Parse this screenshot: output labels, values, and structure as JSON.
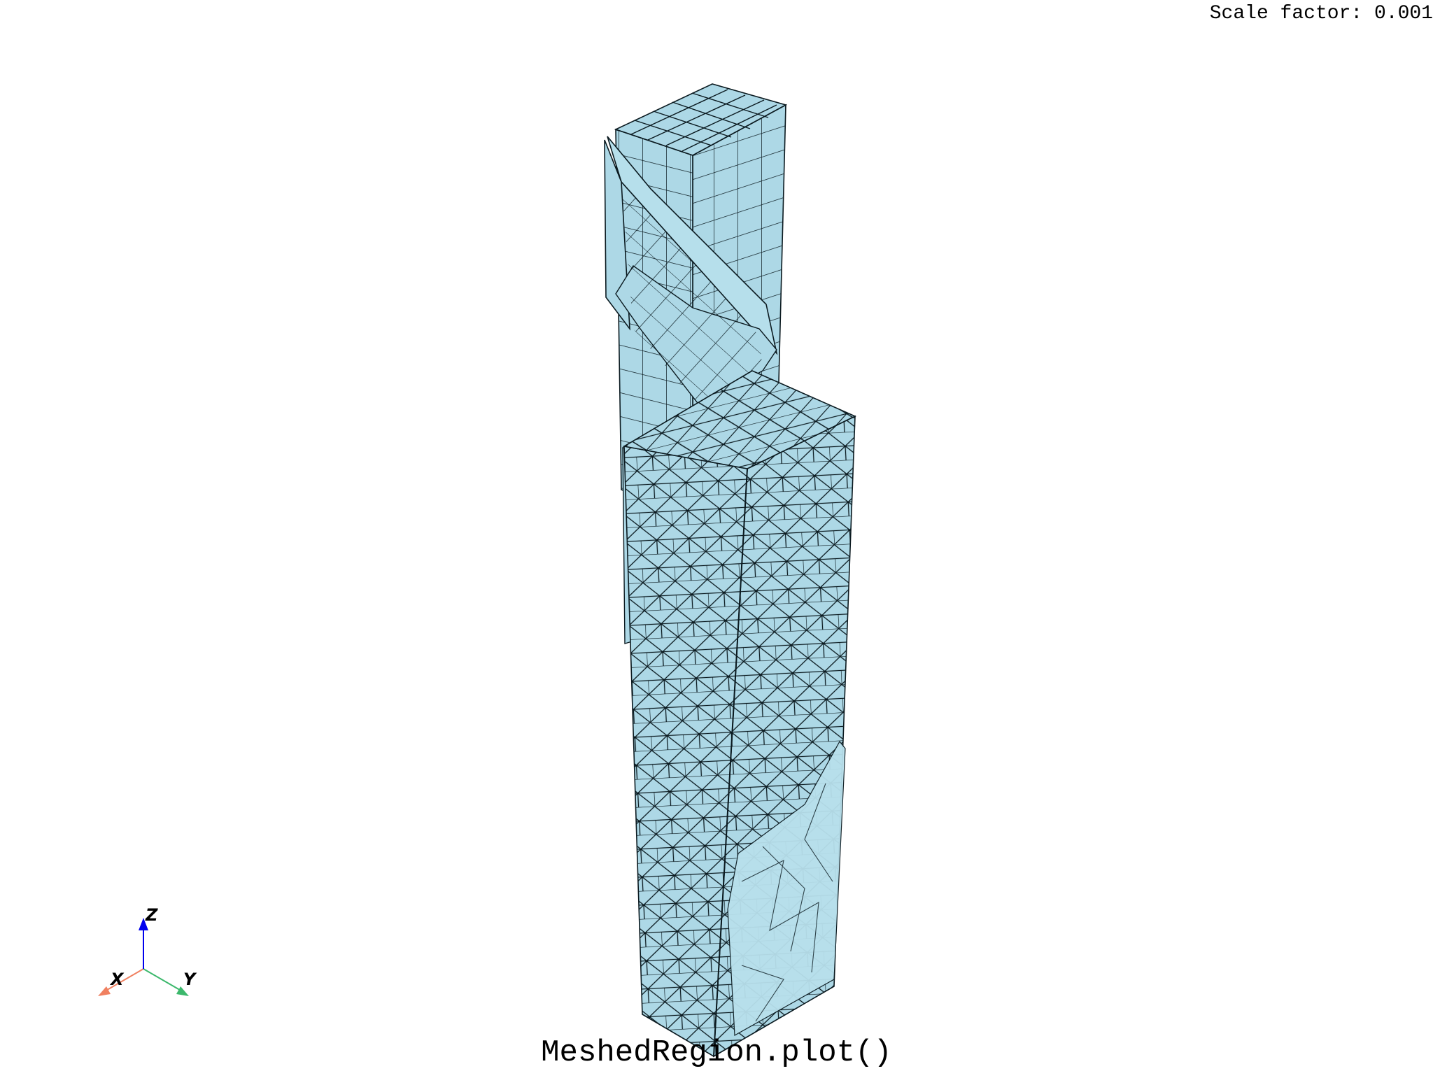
{
  "scale_text": "Scale factor: 0.001",
  "plot_title": "MeshedRegion.plot()",
  "axes": {
    "x_label": "X",
    "y_label": "Y",
    "z_label": "Z",
    "x_color": "#f08060",
    "y_color": "#3cb86c",
    "z_color": "#0000ee"
  },
  "colors": {
    "mesh_fill": "#add8e6",
    "mesh_edge": "#0b1a20",
    "background": "#ffffff"
  }
}
